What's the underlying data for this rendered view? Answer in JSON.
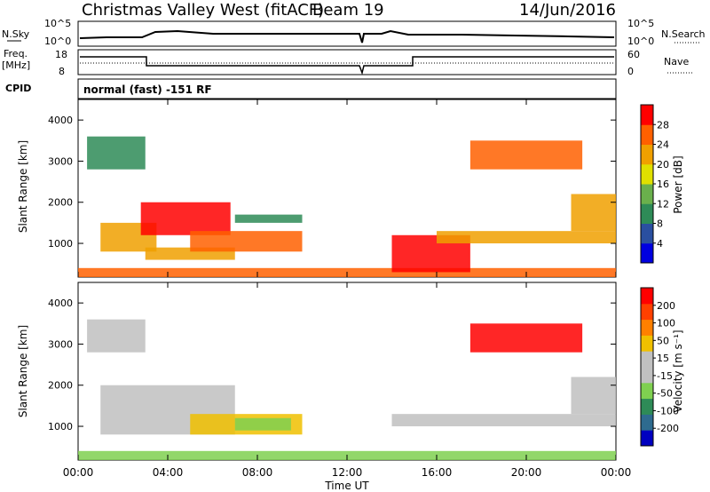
{
  "header": {
    "title": "Christmas Valley West (fitACF)",
    "beam": "Beam 19",
    "date": "14/Jun/2016"
  },
  "strips": {
    "nsky_label": "N.Sky",
    "nsky_ticks": [
      "10^5",
      "10^0"
    ],
    "nsearch_label": "N.Search",
    "nsearch_ticks": [
      "10^5",
      "10^0"
    ],
    "freq_label": [
      "Freq.",
      "[MHz]"
    ],
    "freq_ticks": [
      "18",
      "8"
    ],
    "nave_label": "Nave",
    "nave_ticks": [
      "60",
      "0"
    ],
    "cpid_label": "CPID",
    "cpid_value": "normal (fast) -151 RF"
  },
  "colors": {
    "power_scale": [
      "#0000e0",
      "#2a4fa0",
      "#2e8b57",
      "#6ab04c",
      "#e0e000",
      "#f0a000",
      "#ff6000",
      "#ff0000"
    ],
    "velocity_scale": [
      "#0000c0",
      "#2e6b8f",
      "#2e8b57",
      "#7fd050",
      "#c0c0c0",
      "#c0c0c0",
      "#f0c000",
      "#ff8000",
      "#ff4000",
      "#ff0000"
    ]
  },
  "chart_data": [
    {
      "type": "heatmap",
      "name": "power",
      "ylabel": "Slant Range [km]",
      "ylim": [
        180,
        4500
      ],
      "yticks": [
        "4000",
        "3000",
        "2000",
        "1000"
      ],
      "xlim": [
        "00:00",
        "24:00"
      ],
      "colorbar": {
        "label": "Power [dB]",
        "ticks": [
          "28",
          "24",
          "20",
          "16",
          "12",
          "8",
          "4"
        ]
      },
      "regions": [
        {
          "t0": 0.4,
          "t1": 3.0,
          "r0": 2800,
          "r1": 3600,
          "level": 2
        },
        {
          "t0": 1.0,
          "t1": 3.5,
          "r0": 800,
          "r1": 1500,
          "level": 5
        },
        {
          "t0": 2.8,
          "t1": 6.8,
          "r0": 1200,
          "r1": 2000,
          "level": 7
        },
        {
          "t0": 3.0,
          "t1": 7.0,
          "r0": 600,
          "r1": 900,
          "level": 5
        },
        {
          "t0": 5.0,
          "t1": 10.0,
          "r0": 800,
          "r1": 1300,
          "level": 6
        },
        {
          "t0": 0.0,
          "t1": 24.0,
          "r0": 180,
          "r1": 400,
          "level": 6
        },
        {
          "t0": 7.0,
          "t1": 10.0,
          "r0": 1500,
          "r1": 1700,
          "level": 2
        },
        {
          "t0": 14.0,
          "t1": 17.5,
          "r0": 300,
          "r1": 1200,
          "level": 7
        },
        {
          "t0": 16.0,
          "t1": 24.0,
          "r0": 1000,
          "r1": 1300,
          "level": 5
        },
        {
          "t0": 17.5,
          "t1": 22.5,
          "r0": 2800,
          "r1": 3500,
          "level": 6
        },
        {
          "t0": 22.0,
          "t1": 24.0,
          "r0": 1300,
          "r1": 2200,
          "level": 5
        }
      ]
    },
    {
      "type": "heatmap",
      "name": "velocity",
      "ylabel": "Slant Range [km]",
      "ylim": [
        180,
        4500
      ],
      "yticks": [
        "4000",
        "3000",
        "2000",
        "1000"
      ],
      "xlim": [
        "00:00",
        "24:00"
      ],
      "xlabel": "Time UT",
      "xticks": [
        "00:00",
        "04:00",
        "08:00",
        "12:00",
        "16:00",
        "20:00",
        "00:00"
      ],
      "colorbar": {
        "label": "Velocity [m s⁻¹]",
        "ticks": [
          "200",
          "100",
          "50",
          "15",
          "-15",
          "-50",
          "-100",
          "-200"
        ]
      },
      "regions": [
        {
          "t0": 0.4,
          "t1": 3.0,
          "r0": 2800,
          "r1": 3600,
          "level": 4
        },
        {
          "t0": 1.0,
          "t1": 7.0,
          "r0": 800,
          "r1": 2000,
          "level": 4
        },
        {
          "t0": 5.0,
          "t1": 10.0,
          "r0": 800,
          "r1": 1300,
          "level": 6
        },
        {
          "t0": 7.0,
          "t1": 9.5,
          "r0": 900,
          "r1": 1200,
          "level": 3
        },
        {
          "t0": 0.0,
          "t1": 24.0,
          "r0": 180,
          "r1": 400,
          "level": 3
        },
        {
          "t0": 14.0,
          "t1": 24.0,
          "r0": 1000,
          "r1": 1300,
          "level": 4
        },
        {
          "t0": 17.5,
          "t1": 22.5,
          "r0": 2800,
          "r1": 3500,
          "level": 9
        },
        {
          "t0": 22.0,
          "t1": 24.0,
          "r0": 1300,
          "r1": 2200,
          "level": 4
        }
      ]
    }
  ]
}
